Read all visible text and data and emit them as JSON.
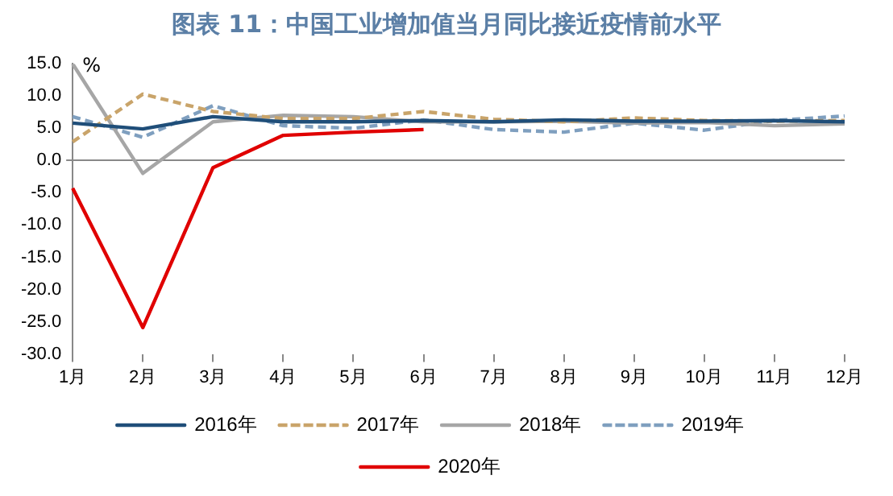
{
  "chart_data": {
    "type": "line",
    "title": "图表 11：中国工业增加值当月同比接近疫情前水平",
    "ylabel": "%",
    "categories": [
      "1月",
      "2月",
      "3月",
      "4月",
      "5月",
      "6月",
      "7月",
      "8月",
      "9月",
      "10月",
      "11月",
      "12月"
    ],
    "series": [
      {
        "name": "2016年",
        "color": "#1f4e79",
        "line_style": "solid",
        "values": [
          5.8,
          4.9,
          6.8,
          6.0,
          6.0,
          6.2,
          6.0,
          6.3,
          6.1,
          6.1,
          6.2,
          6.0
        ]
      },
      {
        "name": "2017年",
        "color": "#c9a46a",
        "line_style": "dashed",
        "values": [
          2.9,
          10.3,
          7.6,
          6.5,
          6.5,
          7.6,
          6.4,
          6.0,
          6.6,
          6.2,
          6.1,
          6.2
        ]
      },
      {
        "name": "2018年",
        "color": "#a6a6a6",
        "line_style": "solid",
        "values": [
          15.0,
          -2.0,
          6.0,
          7.0,
          6.8,
          6.0,
          6.0,
          6.1,
          5.8,
          5.9,
          5.4,
          5.7
        ]
      },
      {
        "name": "2019年",
        "color": "#7f9fbf",
        "line_style": "dashed",
        "values": [
          6.8,
          3.6,
          8.5,
          5.4,
          5.0,
          6.3,
          4.8,
          4.4,
          5.8,
          4.7,
          6.2,
          6.9
        ]
      },
      {
        "name": "2020年",
        "color": "#e00000",
        "line_style": "solid",
        "values": [
          -4.3,
          -25.9,
          -1.1,
          3.9,
          4.4,
          4.8,
          null,
          null,
          null,
          null,
          null,
          null
        ]
      }
    ],
    "ylim": [
      -30,
      15
    ],
    "yticks": [
      {
        "value": -30,
        "label": "-30.0"
      },
      {
        "value": -25,
        "label": "-25.0"
      },
      {
        "value": -20,
        "label": "-20.0"
      },
      {
        "value": -15,
        "label": "-15.0"
      },
      {
        "value": -10,
        "label": "-10.0"
      },
      {
        "value": -5,
        "label": "-5.0"
      },
      {
        "value": 0,
        "label": "0.0"
      },
      {
        "value": 5,
        "label": "5.0"
      },
      {
        "value": 10,
        "label": "10.0"
      },
      {
        "value": 15,
        "label": "15.0"
      }
    ],
    "legend": "bottom",
    "marker": "none"
  }
}
